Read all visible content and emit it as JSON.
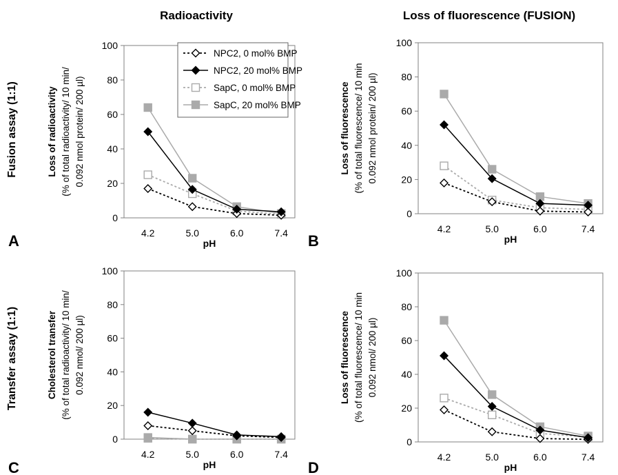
{
  "figure": {
    "col_titles": [
      "Radioactivity",
      "Loss of fluorescence (FUSION)"
    ],
    "row_titles": [
      "Fusion assay (1:1)",
      "Transfer assay (1:1)"
    ]
  },
  "legend": {
    "placement": "inside panel A, top-right",
    "entries": [
      {
        "label": "NPC2, 0 mol% BMP",
        "color": "#000000",
        "marker": "diamond-open",
        "dash": "dotted"
      },
      {
        "label": "NPC2, 20 mol% BMP",
        "color": "#000000",
        "marker": "diamond-filled",
        "dash": "solid"
      },
      {
        "label": "SapC, 0 mol% BMP",
        "color": "#aaaaaa",
        "marker": "square-open",
        "dash": "dotted"
      },
      {
        "label": "SapC, 20 mol% BMP",
        "color": "#aaaaaa",
        "marker": "square-filled",
        "dash": "solid"
      }
    ]
  },
  "chart_data": [
    {
      "type": "line",
      "panel_letter": "A",
      "xlabel": "pH",
      "ylabel": [
        "Loss of radioactivity",
        "(% of total radioactivity/ 10 min/",
        "0.092 nmol protein/ 200 µl)"
      ],
      "categories": [
        "4.2",
        "5.0",
        "6.0",
        "7.4"
      ],
      "ylim": [
        0,
        100
      ],
      "yticks": [
        "0",
        "20",
        "40",
        "60",
        "80",
        "100"
      ],
      "grid": false,
      "series": [
        {
          "name": "NPC2, 0 mol% BMP",
          "values": [
            17,
            6.5,
            2.5,
            1.5
          ]
        },
        {
          "name": "NPC2, 20 mol% BMP",
          "values": [
            50,
            16.5,
            5,
            3.5
          ]
        },
        {
          "name": "SapC, 0 mol% BMP",
          "values": [
            25,
            14,
            4,
            2
          ]
        },
        {
          "name": "SapC, 20 mol% BMP",
          "values": [
            64,
            23,
            6.5,
            2.5
          ]
        }
      ]
    },
    {
      "type": "line",
      "panel_letter": "B",
      "xlabel": "pH",
      "ylabel": [
        "Loss of fluorescence",
        "(% of total fluorescence/ 10 min",
        "0.092 nmol protein/ 200 µl)"
      ],
      "categories": [
        "4.2",
        "5.0",
        "6.0",
        "7.4"
      ],
      "ylim": [
        0,
        100
      ],
      "yticks": [
        "0",
        "20",
        "40",
        "60",
        "80",
        "100"
      ],
      "grid": false,
      "series": [
        {
          "name": "NPC2, 0 mol% BMP",
          "values": [
            18,
            7,
            1.5,
            1
          ]
        },
        {
          "name": "NPC2, 20 mol% BMP",
          "values": [
            52,
            20.5,
            6,
            5
          ]
        },
        {
          "name": "SapC, 0 mol% BMP",
          "values": [
            28,
            8,
            3.5,
            2.5
          ]
        },
        {
          "name": "SapC, 20 mol% BMP",
          "values": [
            70,
            26,
            10,
            6
          ]
        }
      ]
    },
    {
      "type": "line",
      "panel_letter": "C",
      "xlabel": "pH",
      "ylabel": [
        "Cholesterol transfer",
        "(% of total radioactivity/ 10 min/",
        "0.092 nmol/ 200 µl)"
      ],
      "categories": [
        "4.2",
        "5.0",
        "6.0",
        "7.4"
      ],
      "ylim": [
        0,
        100
      ],
      "yticks": [
        "0",
        "20",
        "40",
        "60",
        "80",
        "100"
      ],
      "grid": false,
      "series": [
        {
          "name": "NPC2, 0 mol% BMP",
          "values": [
            8,
            5,
            2,
            1
          ]
        },
        {
          "name": "NPC2, 20 mol% BMP",
          "values": [
            16,
            9.5,
            2.5,
            1.5
          ]
        },
        {
          "name": "SapC, 0 mol% BMP",
          "values": [
            0.5,
            0,
            0,
            0
          ]
        },
        {
          "name": "SapC, 20 mol% BMP",
          "values": [
            1,
            0,
            0,
            0
          ]
        }
      ]
    },
    {
      "type": "line",
      "panel_letter": "D",
      "xlabel": "pH",
      "ylabel": [
        "Loss of fluorescence",
        "(% of total fluorescence/ 10 min",
        "0.092 nmol/ 200 µl)"
      ],
      "categories": [
        "4.2",
        "5.0",
        "6.0",
        "7.4"
      ],
      "ylim": [
        0,
        100
      ],
      "yticks": [
        "0",
        "20",
        "40",
        "60",
        "80",
        "100"
      ],
      "grid": false,
      "series": [
        {
          "name": "NPC2, 0 mol% BMP",
          "values": [
            19,
            6,
            2,
            1.5
          ]
        },
        {
          "name": "NPC2, 20 mol% BMP",
          "values": [
            51,
            21,
            7,
            2.5
          ]
        },
        {
          "name": "SapC, 0 mol% BMP",
          "values": [
            26,
            16,
            5,
            3
          ]
        },
        {
          "name": "SapC, 20 mol% BMP",
          "values": [
            72,
            28,
            9,
            3.5
          ]
        }
      ]
    }
  ]
}
